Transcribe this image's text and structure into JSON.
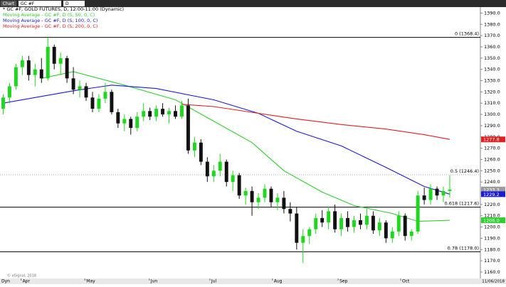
{
  "chart_data": {
    "type": "candlestick",
    "toolbar": {
      "menu": "Chart",
      "symbol": "GC #F",
      "interval": "D"
    },
    "title": "* GC #F, GOLD FUTURES, D, 12:00-11:00 (Dynamic)",
    "footer": {
      "mode": "Dyn",
      "copyright": "© eSignal, 2018",
      "date": "11/06/2018"
    },
    "up_color": "#1ed81e",
    "down_color": "#111111",
    "xlim": [
      -0.5,
      74.8
    ],
    "xticks": [
      {
        "value": 2.8,
        "label": "Apr"
      },
      {
        "value": 12.8,
        "label": "May"
      },
      {
        "value": 22.9,
        "label": "Jun"
      },
      {
        "value": 32.4,
        "label": "Jul"
      },
      {
        "value": 42.2,
        "label": "Aug"
      },
      {
        "value": 52.5,
        "label": "Sep"
      },
      {
        "value": 62.3,
        "label": "Oct"
      }
    ],
    "ylim": [
      1154.3,
      1395.3
    ],
    "yticks": [
      {
        "value": 1160,
        "label": "1160.0"
      },
      {
        "value": 1170,
        "label": "1170.0"
      },
      {
        "value": 1180,
        "label": "1180.0"
      },
      {
        "value": 1190,
        "label": "1190.0"
      },
      {
        "value": 1200,
        "label": "1200.0"
      },
      {
        "value": 1210,
        "label": "1210.0"
      },
      {
        "value": 1220,
        "label": "1220.0"
      },
      {
        "value": 1230,
        "label": "1230.0"
      },
      {
        "value": 1240,
        "label": "1240.0"
      },
      {
        "value": 1250,
        "label": "1250.0"
      },
      {
        "value": 1260,
        "label": "1260.0"
      },
      {
        "value": 1270,
        "label": "1270.0"
      },
      {
        "value": 1280,
        "label": "1280.0"
      },
      {
        "value": 1290,
        "label": "1290.0"
      },
      {
        "value": 1300,
        "label": "1300.0"
      },
      {
        "value": 1310,
        "label": "1310.0"
      },
      {
        "value": 1320,
        "label": "1320.0"
      },
      {
        "value": 1330,
        "label": "1330.0"
      },
      {
        "value": 1340,
        "label": "1340.0"
      },
      {
        "value": 1350,
        "label": "1350.0"
      },
      {
        "value": 1360,
        "label": "1360.0"
      },
      {
        "value": 1370,
        "label": "1370.0"
      },
      {
        "value": 1380,
        "label": "1380.0"
      },
      {
        "value": 1390,
        "label": "1390.0"
      }
    ],
    "ohlc": [
      [
        1305,
        1318,
        1300,
        1315
      ],
      [
        1315,
        1328,
        1310,
        1325
      ],
      [
        1325,
        1345,
        1322,
        1342
      ],
      [
        1342,
        1352,
        1335,
        1348
      ],
      [
        1348,
        1352,
        1330,
        1335
      ],
      [
        1335,
        1345,
        1325,
        1340
      ],
      [
        1340,
        1350,
        1328,
        1332
      ],
      [
        1332,
        1368.4,
        1330,
        1360
      ],
      [
        1360,
        1362,
        1340,
        1345
      ],
      [
        1345,
        1355,
        1335,
        1350
      ],
      [
        1350,
        1352,
        1328,
        1332
      ],
      [
        1332,
        1342,
        1318,
        1322
      ],
      [
        1322,
        1330,
        1315,
        1325
      ],
      [
        1325,
        1328,
        1312,
        1315
      ],
      [
        1315,
        1320,
        1302,
        1305
      ],
      [
        1305,
        1318,
        1302,
        1314
      ],
      [
        1314,
        1328,
        1310,
        1320
      ],
      [
        1320,
        1322,
        1300,
        1302
      ],
      [
        1302,
        1305,
        1288,
        1292
      ],
      [
        1292,
        1300,
        1285,
        1296
      ],
      [
        1296,
        1298,
        1282,
        1288
      ],
      [
        1288,
        1302,
        1285,
        1298
      ],
      [
        1298,
        1310,
        1294,
        1303
      ],
      [
        1303,
        1306,
        1295,
        1298
      ],
      [
        1298,
        1308,
        1294,
        1305
      ],
      [
        1305,
        1310,
        1298,
        1300
      ],
      [
        1300,
        1306,
        1292,
        1303
      ],
      [
        1303,
        1308,
        1296,
        1298
      ],
      [
        1298,
        1312,
        1296,
        1308
      ],
      [
        1308,
        1314,
        1265,
        1268
      ],
      [
        1268,
        1280,
        1262,
        1275
      ],
      [
        1275,
        1278,
        1255,
        1258
      ],
      [
        1258,
        1262,
        1240,
        1245
      ],
      [
        1245,
        1255,
        1240,
        1250
      ],
      [
        1250,
        1265,
        1245,
        1258
      ],
      [
        1258,
        1260,
        1236,
        1240
      ],
      [
        1240,
        1250,
        1232,
        1246
      ],
      [
        1246,
        1248,
        1225,
        1228
      ],
      [
        1228,
        1235,
        1220,
        1232
      ],
      [
        1232,
        1236,
        1210,
        1222
      ],
      [
        1222,
        1230,
        1216,
        1226
      ],
      [
        1226,
        1238,
        1222,
        1234
      ],
      [
        1234,
        1236,
        1218,
        1222
      ],
      [
        1222,
        1230,
        1215,
        1226
      ],
      [
        1226,
        1232,
        1212,
        1216
      ],
      [
        1216,
        1222,
        1205,
        1212
      ],
      [
        1212,
        1218,
        1180,
        1186
      ],
      [
        1186,
        1198,
        1168,
        1192
      ],
      [
        1192,
        1200,
        1185,
        1198
      ],
      [
        1198,
        1212,
        1194,
        1208
      ],
      [
        1208,
        1215,
        1200,
        1204
      ],
      [
        1204,
        1218,
        1198,
        1214
      ],
      [
        1214,
        1220,
        1195,
        1198
      ],
      [
        1198,
        1212,
        1192,
        1208
      ],
      [
        1208,
        1214,
        1196,
        1200
      ],
      [
        1200,
        1210,
        1195,
        1206
      ],
      [
        1206,
        1212,
        1198,
        1202
      ],
      [
        1202,
        1216,
        1198,
        1210
      ],
      [
        1210,
        1214,
        1194,
        1197
      ],
      [
        1197,
        1208,
        1192,
        1204
      ],
      [
        1204,
        1206,
        1186,
        1190
      ],
      [
        1190,
        1200,
        1186,
        1196
      ],
      [
        1196,
        1214,
        1192,
        1210
      ],
      [
        1210,
        1212,
        1188,
        1192
      ],
      [
        1192,
        1198,
        1188,
        1196
      ],
      [
        1196,
        1232,
        1194,
        1228
      ],
      [
        1228,
        1235,
        1220,
        1224
      ],
      [
        1224,
        1238,
        1220,
        1234
      ],
      [
        1234,
        1236,
        1224,
        1228
      ],
      [
        1228,
        1236,
        1222,
        1232
      ],
      [
        1232,
        1246,
        1226,
        1233.3
      ]
    ],
    "series": [
      {
        "name": "Moving Average - GC #F, D (S, 50, 0, C)",
        "color": "#2ed02e",
        "x": [
          6,
          11,
          19,
          27,
          33,
          39,
          44,
          50,
          55,
          61,
          65,
          70
        ],
        "values": [
          1332,
          1338,
          1326,
          1313,
          1294,
          1275,
          1250,
          1231,
          1219,
          1212,
          1205,
          1206
        ]
      },
      {
        "name": "Moving Average - GC #F, D (S, 100, 0, C)",
        "color": "#1a1ad8",
        "x": [
          0,
          6,
          11,
          17,
          24,
          33,
          40,
          46,
          53,
          60,
          66,
          70
        ],
        "values": [
          1310,
          1316,
          1321,
          1326,
          1323,
          1313,
          1301,
          1285,
          1272,
          1253,
          1236,
          1229.2
        ]
      },
      {
        "name": "Moving Average - GC #F, D (S, 200, 0, C)",
        "color": "#e02020",
        "x": [
          28,
          33,
          40,
          46,
          53,
          60,
          66,
          70
        ],
        "values": [
          1309,
          1307,
          1301,
          1296,
          1291,
          1287,
          1282,
          1277.8
        ]
      }
    ],
    "levels": [
      {
        "value": 1368.4,
        "label": "0 (1368.4)",
        "style": "solid"
      },
      {
        "value": 1246.4,
        "label": "0.5 (1246.4)",
        "style": "dotted"
      },
      {
        "value": 1217.6,
        "label": "0.618 (1217.6)",
        "style": "solid"
      },
      {
        "value": 1178.0,
        "label": "0.78 (1178.0)",
        "style": "solid"
      }
    ],
    "price_tags": [
      {
        "value": 1277.8,
        "label": "1277.8",
        "color": "#e02020"
      },
      {
        "value": 1233.3,
        "label": "1233.3",
        "color": "#9a9a9a"
      },
      {
        "value": 1229.2,
        "label": "1229.2",
        "color": "#1a1ad8"
      },
      {
        "value": 1206.0,
        "label": "1206.0",
        "color": "#2ed02e"
      }
    ]
  }
}
